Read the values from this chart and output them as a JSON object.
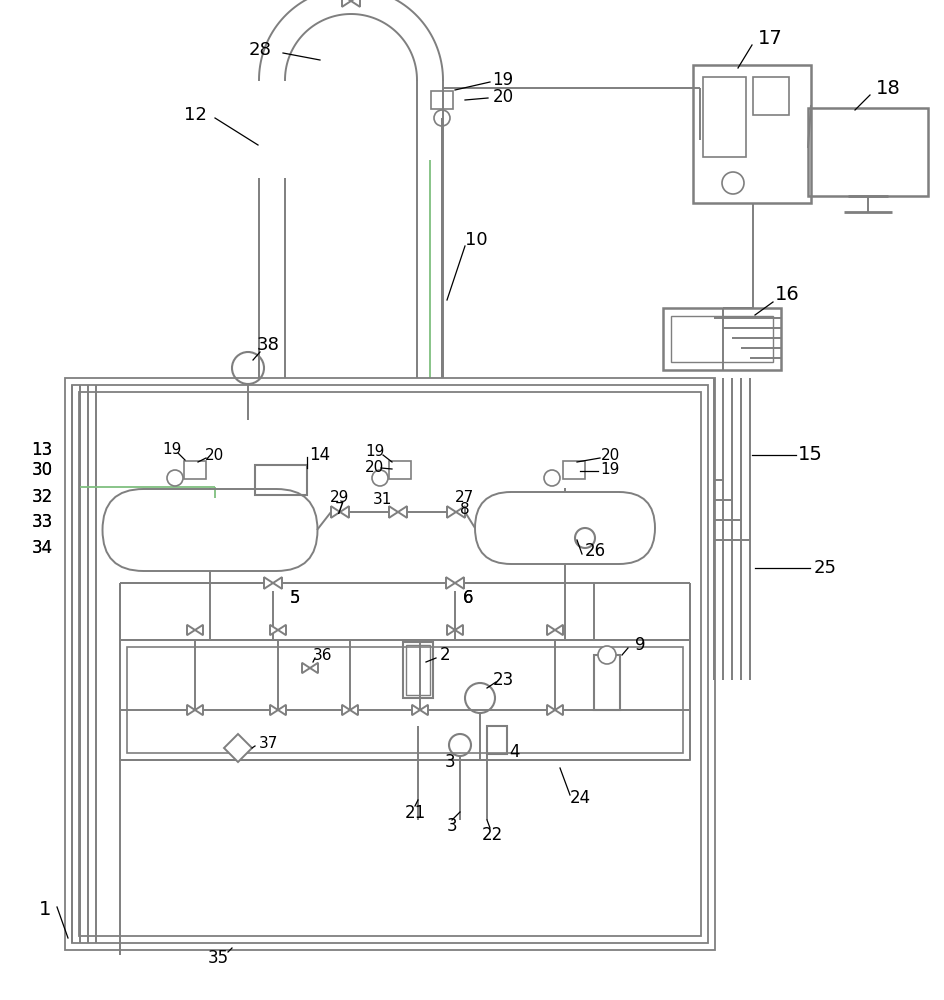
{
  "bg": "#ffffff",
  "lc": "#7f7f7f",
  "gc": "#7fbf7f",
  "tc": "#000000",
  "figsize": [
    9.45,
    10.0
  ],
  "dpi": 100
}
